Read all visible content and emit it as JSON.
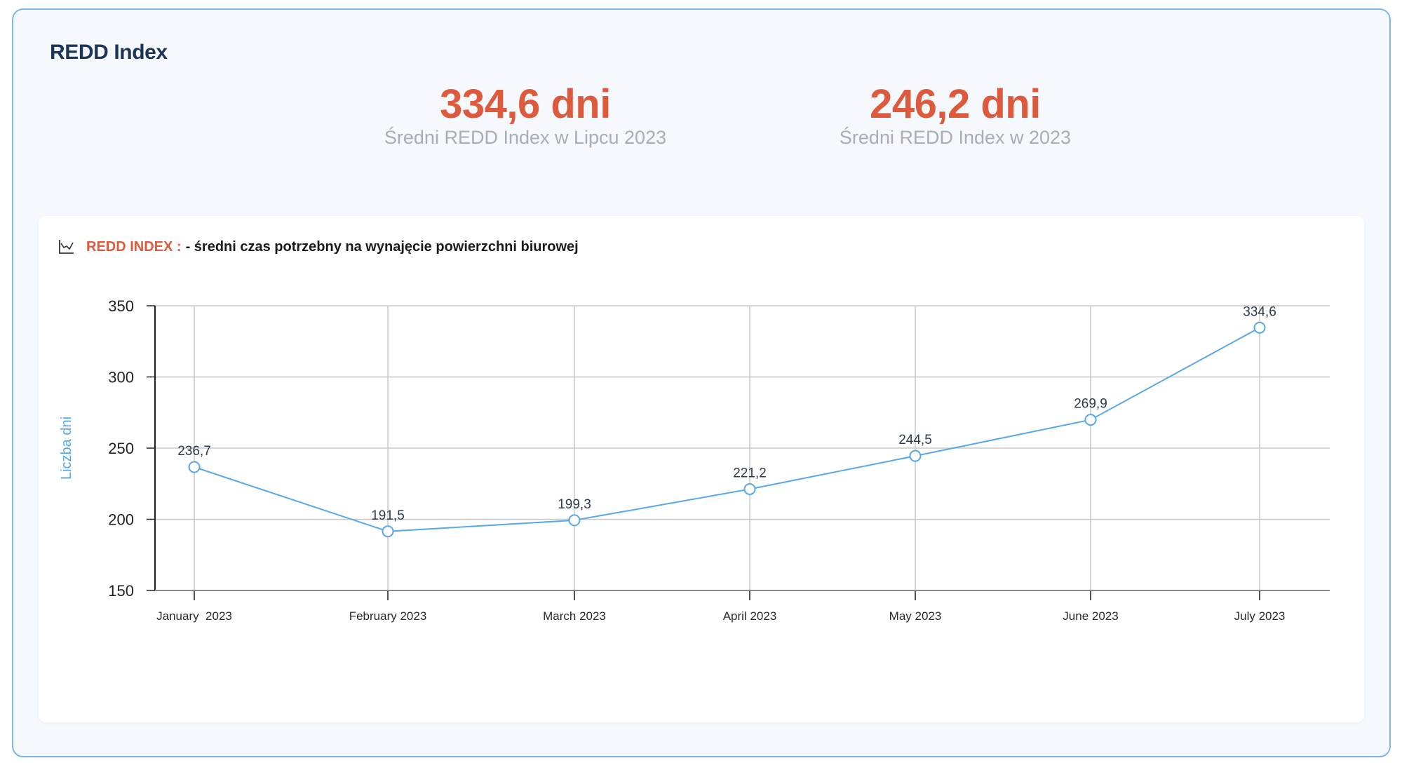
{
  "title": "REDD Index",
  "kpis": [
    {
      "value": "334,6 dni",
      "label": "Średni REDD Index w Lipcu 2023"
    },
    {
      "value": "246,2 dni",
      "label": "Średni REDD Index w 2023"
    }
  ],
  "chart_heading": {
    "icon": "line-chart-icon",
    "accent": "REDD INDEX :",
    "text": "- średni czas potrzebny na wynajęcie powierzchni biurowej"
  },
  "chart_data": {
    "type": "line",
    "title": "",
    "xlabel": "",
    "ylabel": "Liczba dni",
    "categories": [
      "January  2023",
      "February 2023",
      "March 2023",
      "April 2023",
      "May 2023",
      "June 2023",
      "July 2023"
    ],
    "series": [
      {
        "values": [
          236.7,
          191.5,
          199.3,
          221.2,
          244.5,
          269.9,
          334.6
        ],
        "labels": [
          "236,7",
          "191,5",
          "199,3",
          "221,2",
          "244,5",
          "269,9",
          "334,6"
        ]
      }
    ],
    "ylim": [
      150,
      350
    ],
    "yticks": [
      "150",
      "200",
      "250",
      "300",
      "350"
    ],
    "grid": true,
    "legend": "none",
    "colors": {
      "line": "#5aa7e6",
      "grid": "#c8c8c8",
      "axis": "#222222"
    }
  }
}
